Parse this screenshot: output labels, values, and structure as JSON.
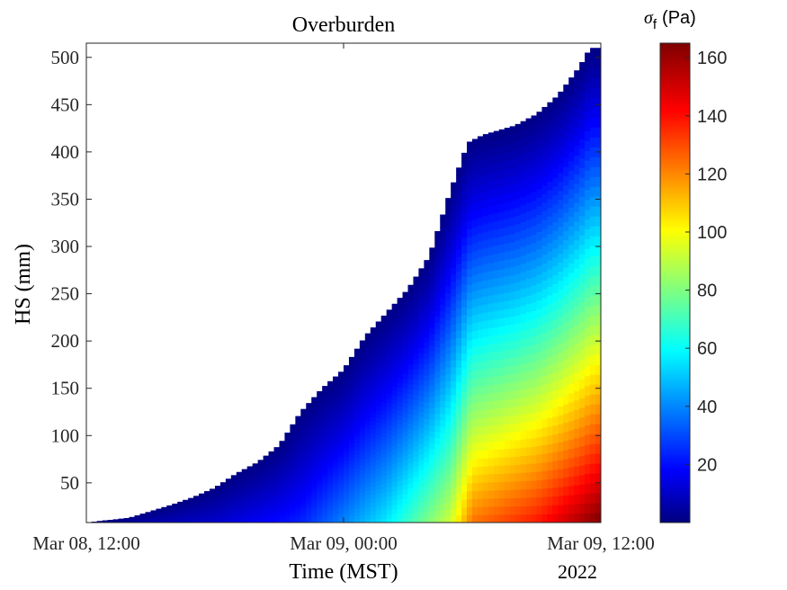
{
  "chart_data": {
    "type": "heatmap",
    "title": "Overburden",
    "xlabel": "Time (MST)",
    "ylabel": "HS (mm)",
    "x_tick_labels": [
      "Mar 08, 12:00",
      "Mar 09, 00:00",
      "Mar 09, 12:00"
    ],
    "x_secondary_label": "2022",
    "xlim_hours_from_mar08_12": [
      0,
      24
    ],
    "ylim": [
      8,
      515
    ],
    "y_ticks": [
      50,
      100,
      150,
      200,
      250,
      300,
      350,
      400,
      450,
      500
    ],
    "colorbar": {
      "label_symbol": "σ",
      "label_subscript": "f",
      "label_unit": "(Pa)",
      "ticks": [
        20,
        40,
        60,
        80,
        100,
        120,
        140,
        160
      ],
      "clim": [
        0,
        165
      ],
      "colormap": "jet"
    },
    "snow_height_profile": [
      {
        "t": 0.0,
        "hs": 8
      },
      {
        "t": 2.0,
        "hs": 13
      },
      {
        "t": 3.0,
        "hs": 20
      },
      {
        "t": 4.0,
        "hs": 27
      },
      {
        "t": 5.0,
        "hs": 35
      },
      {
        "t": 6.0,
        "hs": 45
      },
      {
        "t": 7.0,
        "hs": 60
      },
      {
        "t": 8.0,
        "hs": 72
      },
      {
        "t": 9.0,
        "hs": 90
      },
      {
        "t": 10.0,
        "hs": 125
      },
      {
        "t": 11.0,
        "hs": 150
      },
      {
        "t": 12.0,
        "hs": 170
      },
      {
        "t": 13.0,
        "hs": 205
      },
      {
        "t": 14.0,
        "hs": 230
      },
      {
        "t": 15.0,
        "hs": 255
      },
      {
        "t": 16.0,
        "hs": 290
      },
      {
        "t": 17.0,
        "hs": 360
      },
      {
        "t": 17.8,
        "hs": 410
      },
      {
        "t": 18.5,
        "hs": 418
      },
      {
        "t": 20.0,
        "hs": 428
      },
      {
        "t": 21.0,
        "hs": 440
      },
      {
        "t": 22.0,
        "hs": 460
      },
      {
        "t": 23.0,
        "hs": 490
      },
      {
        "t": 23.5,
        "hs": 510
      },
      {
        "t": 24.0,
        "hs": 510
      }
    ],
    "overburden_at_surface_pa": [
      {
        "t": 0.0,
        "bottom_pa": 2
      },
      {
        "t": 6.0,
        "bottom_pa": 12
      },
      {
        "t": 10.0,
        "bottom_pa": 25
      },
      {
        "t": 14.0,
        "bottom_pa": 58
      },
      {
        "t": 17.0,
        "bottom_pa": 95
      },
      {
        "t": 18.0,
        "bottom_pa": 125
      },
      {
        "t": 21.0,
        "bottom_pa": 140
      },
      {
        "t": 24.0,
        "bottom_pa": 165
      }
    ]
  }
}
